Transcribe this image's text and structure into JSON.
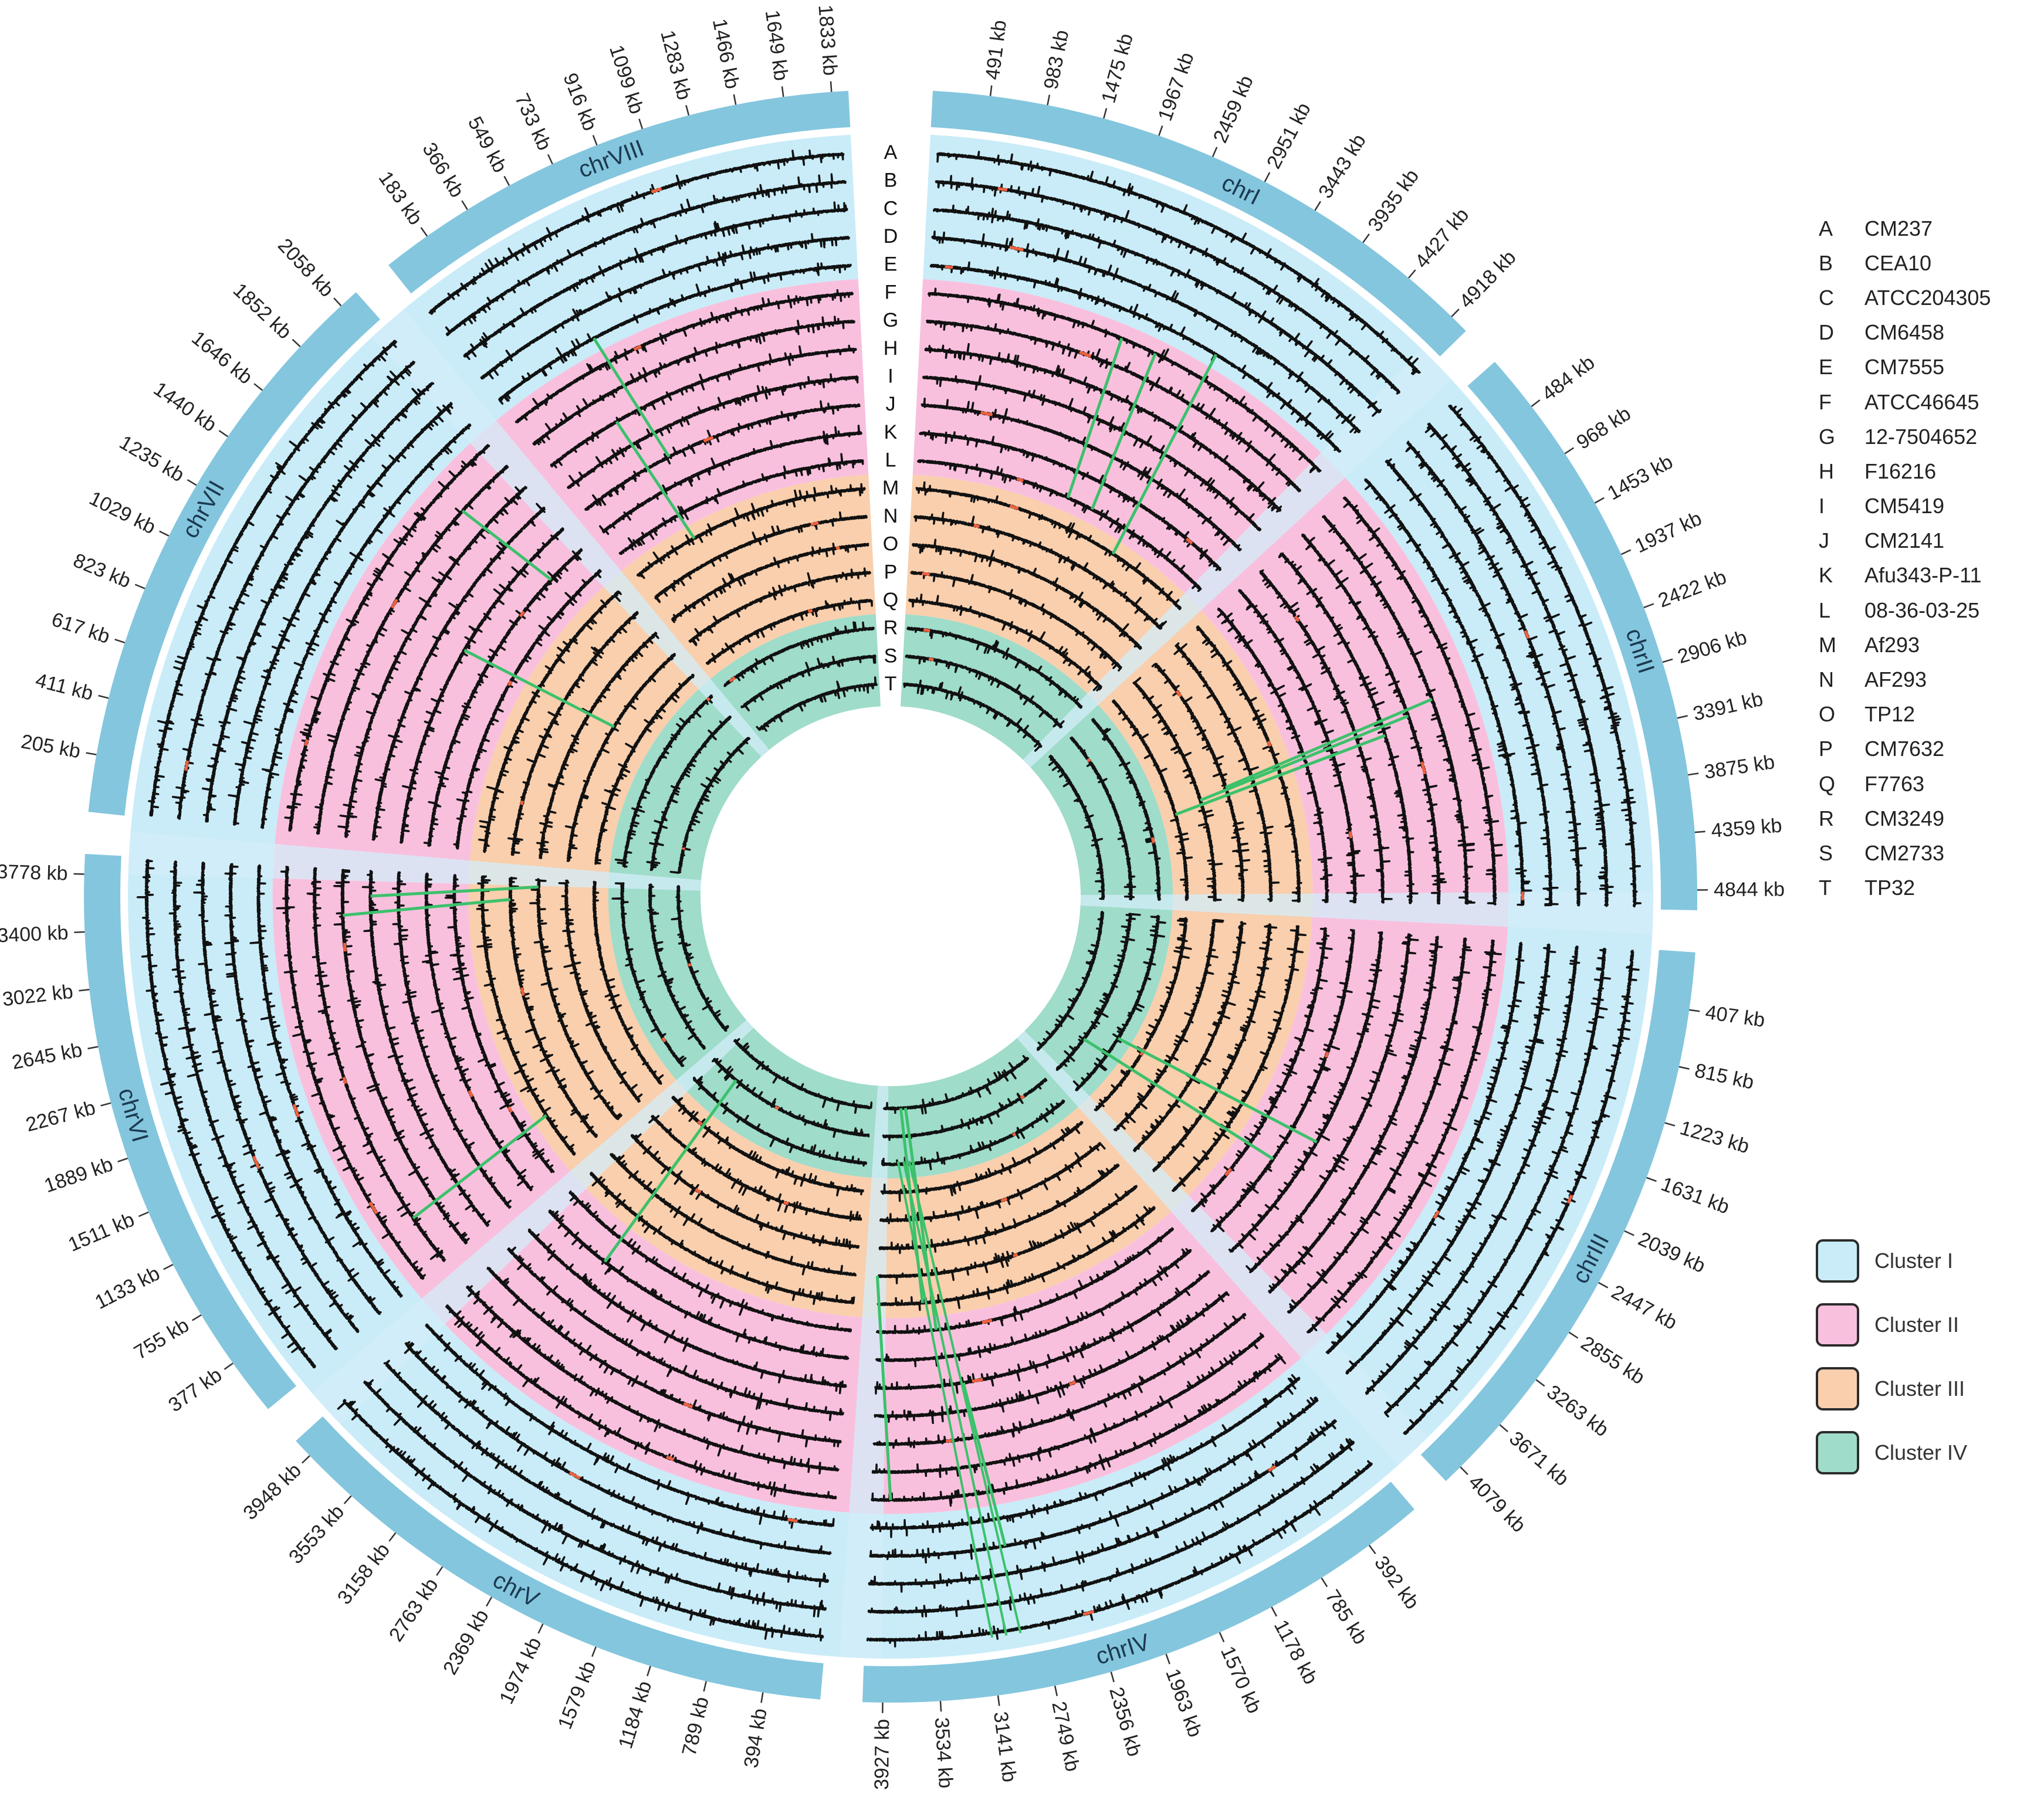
{
  "chromosomes": [
    {
      "name": "chrI",
      "ticks": [
        "491 kb",
        "983 kb",
        "1475 kb",
        "1967 kb",
        "2459 kb",
        "2951 kb",
        "3443 kb",
        "3935 kb",
        "4427 kb",
        "4918 kb"
      ]
    },
    {
      "name": "chrII",
      "ticks": [
        "484 kb",
        "968 kb",
        "1453 kb",
        "1937 kb",
        "2422 kb",
        "2906 kb",
        "3391 kb",
        "3875 kb",
        "4359 kb",
        "4844 kb"
      ]
    },
    {
      "name": "chrIII",
      "ticks": [
        "407 kb",
        "815 kb",
        "1223 kb",
        "1631 kb",
        "2039 kb",
        "2447 kb",
        "2855 kb",
        "3263 kb",
        "3671 kb",
        "4079 kb"
      ]
    },
    {
      "name": "chrIV",
      "ticks": [
        "392 kb",
        "785 kb",
        "1178 kb",
        "1570 kb",
        "1963 kb",
        "2356 kb",
        "2749 kb",
        "3141 kb",
        "3534 kb",
        "3927 kb"
      ]
    },
    {
      "name": "chrV",
      "ticks": [
        "394 kb",
        "789 kb",
        "1184 kb",
        "1579 kb",
        "1974 kb",
        "2369 kb",
        "2763 kb",
        "3158 kb",
        "3553 kb",
        "3948 kb"
      ]
    },
    {
      "name": "chrVI",
      "ticks": [
        "377 kb",
        "755 kb",
        "1133 kb",
        "1511 kb",
        "1889 kb",
        "2267 kb",
        "2645 kb",
        "3022 kb",
        "3400 kb",
        "3778 kb"
      ]
    },
    {
      "name": "chrVII",
      "ticks": [
        "205 kb",
        "411 kb",
        "617 kb",
        "823 kb",
        "1029 kb",
        "1235 kb",
        "1440 kb",
        "1646 kb",
        "1852 kb",
        "2058 kb"
      ]
    },
    {
      "name": "chrVIII",
      "ticks": [
        "183 kb",
        "366 kb",
        "549 kb",
        "733 kb",
        "916 kb",
        "1099 kb",
        "1283 kb",
        "1466 kb",
        "1649 kb",
        "1833 kb"
      ]
    }
  ],
  "tracks": [
    {
      "key": "A",
      "name": "CM237"
    },
    {
      "key": "B",
      "name": "CEA10"
    },
    {
      "key": "C",
      "name": "ATCC204305"
    },
    {
      "key": "D",
      "name": "CM6458"
    },
    {
      "key": "E",
      "name": "CM7555"
    },
    {
      "key": "F",
      "name": "ATCC46645"
    },
    {
      "key": "G",
      "name": "12-7504652"
    },
    {
      "key": "H",
      "name": "F16216"
    },
    {
      "key": "I",
      "name": "CM5419"
    },
    {
      "key": "J",
      "name": "CM2141"
    },
    {
      "key": "K",
      "name": "Afu343-P-11"
    },
    {
      "key": "L",
      "name": "08-36-03-25"
    },
    {
      "key": "M",
      "name": "Af293"
    },
    {
      "key": "N",
      "name": "AF293"
    },
    {
      "key": "O",
      "name": "TP12"
    },
    {
      "key": "P",
      "name": "CM7632"
    },
    {
      "key": "Q",
      "name": "F7763"
    },
    {
      "key": "R",
      "name": "CM3249"
    },
    {
      "key": "S",
      "name": "CM2733"
    },
    {
      "key": "T",
      "name": "TP32"
    }
  ],
  "clusters": [
    {
      "name": "Cluster I",
      "color": "#c9ecf8",
      "tracks": [
        "A",
        "B",
        "C",
        "D",
        "E"
      ]
    },
    {
      "name": "Cluster II",
      "color": "#f9c0de",
      "tracks": [
        "F",
        "G",
        "H",
        "I",
        "J",
        "K",
        "L"
      ]
    },
    {
      "name": "Cluster III",
      "color": "#f9cfad",
      "tracks": [
        "M",
        "N",
        "O",
        "P",
        "Q"
      ]
    },
    {
      "name": "Cluster IV",
      "color": "#9fdcca",
      "tracks": [
        "R",
        "S",
        "T"
      ]
    }
  ],
  "colors": {
    "ideogram": "#84c6de",
    "ideogram_gap": "#d3eef9",
    "trace": "#111111",
    "deletion": "#f0613e",
    "link": "#3cc16c"
  }
}
